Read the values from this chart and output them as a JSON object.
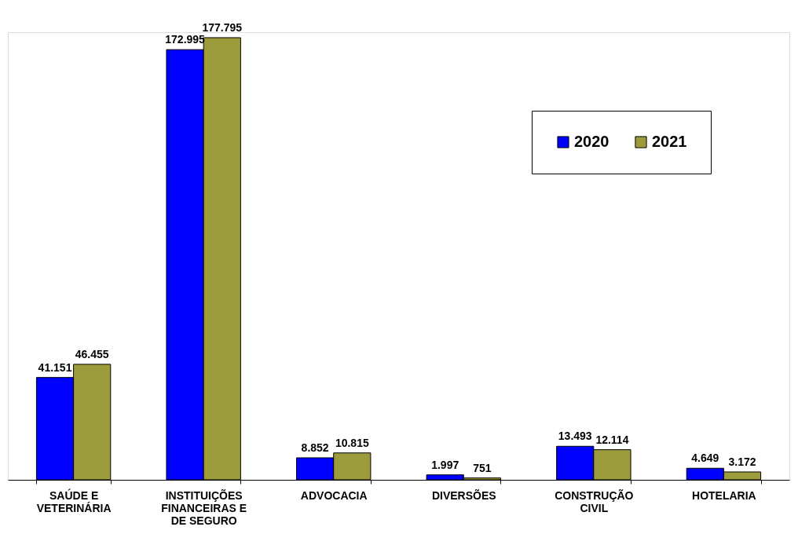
{
  "chart_data": {
    "type": "bar",
    "categories": [
      "SAÚDE E VETERINÁRIA",
      "INSTITUIÇÕES FINANCEIRAS E DE SEGURO",
      "ADVOCACIA",
      "DIVERSÕES",
      "CONSTRUÇÃO CIVIL",
      "HOTELARIA"
    ],
    "series": [
      {
        "name": "2020",
        "color": "#0000ff",
        "values": [
          41151,
          172995,
          8852,
          1997,
          13493,
          4649
        ],
        "value_labels": [
          "41.151",
          "172.995",
          "8.852",
          "1.997",
          "13.493",
          "4.649"
        ]
      },
      {
        "name": "2021",
        "color": "#9c9c3c",
        "values": [
          46455,
          177795,
          10815,
          751,
          12114,
          3172
        ],
        "value_labels": [
          "46.455",
          "177.795",
          "10.815",
          "751",
          "12.114",
          "3.172"
        ]
      }
    ],
    "legend": "top right",
    "grid": false
  }
}
